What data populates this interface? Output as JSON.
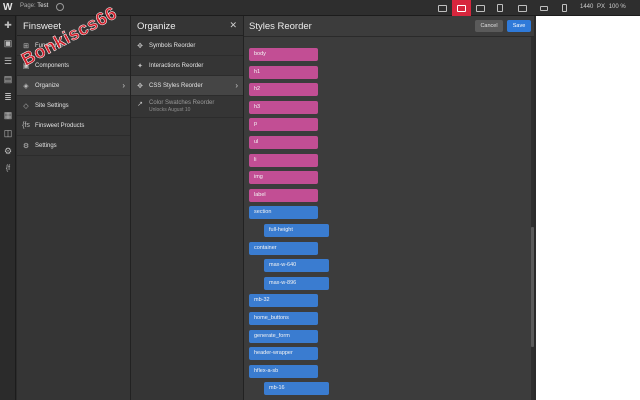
{
  "topbar": {
    "page_prefix": "Page:",
    "page_name": "Test",
    "zoom_width": "1440",
    "zoom_unit": "PX",
    "zoom_percent": "100 %"
  },
  "rail": {
    "icons": [
      "plus-icon",
      "box-icon",
      "navigator-icon",
      "pages-icon",
      "cms-icon",
      "assets-icon",
      "finsweet-logo-icon",
      "settings-icon",
      "fs-extension-icon"
    ]
  },
  "finsweet": {
    "title": "Finsweet",
    "items": [
      {
        "label": "Functional",
        "icon": "⊞"
      },
      {
        "label": "Components",
        "icon": "▣"
      },
      {
        "label": "Organize",
        "icon": "◈"
      },
      {
        "label": "Site Settings",
        "icon": "◇"
      },
      {
        "label": "Finsweet Products",
        "icon": "{fs"
      },
      {
        "label": "Settings",
        "icon": "⚙"
      }
    ]
  },
  "watermark": "Bonkiscs66",
  "organize": {
    "title": "Organize",
    "items": [
      {
        "label": "Symbols Reorder",
        "icon": "✥"
      },
      {
        "label": "Interactions Reorder",
        "icon": "✦"
      },
      {
        "label": "CSS Styles Reorder",
        "icon": "✥"
      },
      {
        "label": "Color Swatches Reorder",
        "sub": "Unlocks August 10",
        "icon": "↗"
      }
    ]
  },
  "styles_reorder": {
    "title": "Styles Reorder",
    "cancel_label": "Cancel",
    "save_label": "Save",
    "pills": [
      {
        "label": "body",
        "kind": "tag",
        "level": 0
      },
      {
        "label": "h1",
        "kind": "tag",
        "level": 0
      },
      {
        "label": "h2",
        "kind": "tag",
        "level": 0
      },
      {
        "label": "h3",
        "kind": "tag",
        "level": 0
      },
      {
        "label": "p",
        "kind": "tag",
        "level": 0
      },
      {
        "label": "ul",
        "kind": "tag",
        "level": 0
      },
      {
        "label": "li",
        "kind": "tag",
        "level": 0
      },
      {
        "label": "img",
        "kind": "tag",
        "level": 0
      },
      {
        "label": "label",
        "kind": "tag",
        "level": 0
      },
      {
        "label": "section",
        "kind": "class",
        "level": 0
      },
      {
        "label": "full-height",
        "kind": "class",
        "level": 1
      },
      {
        "label": "container",
        "kind": "class",
        "level": 0
      },
      {
        "label": "max-w-640",
        "kind": "class",
        "level": 1
      },
      {
        "label": "max-w-896",
        "kind": "class",
        "level": 1
      },
      {
        "label": "mb-32",
        "kind": "class",
        "level": 0
      },
      {
        "label": "home_buttons",
        "kind": "class",
        "level": 0
      },
      {
        "label": "generate_form",
        "kind": "class",
        "level": 0
      },
      {
        "label": "header-wrapper",
        "kind": "class",
        "level": 0
      },
      {
        "label": "hflex-a-sb",
        "kind": "class",
        "level": 0
      },
      {
        "label": "mb-16",
        "kind": "class",
        "level": 1
      }
    ]
  },
  "colors": {
    "tag_pill": "#c24e94",
    "class_pill": "#3a7cd0",
    "active_breakpoint": "#d7263d",
    "save_button": "#2f7ad9"
  }
}
